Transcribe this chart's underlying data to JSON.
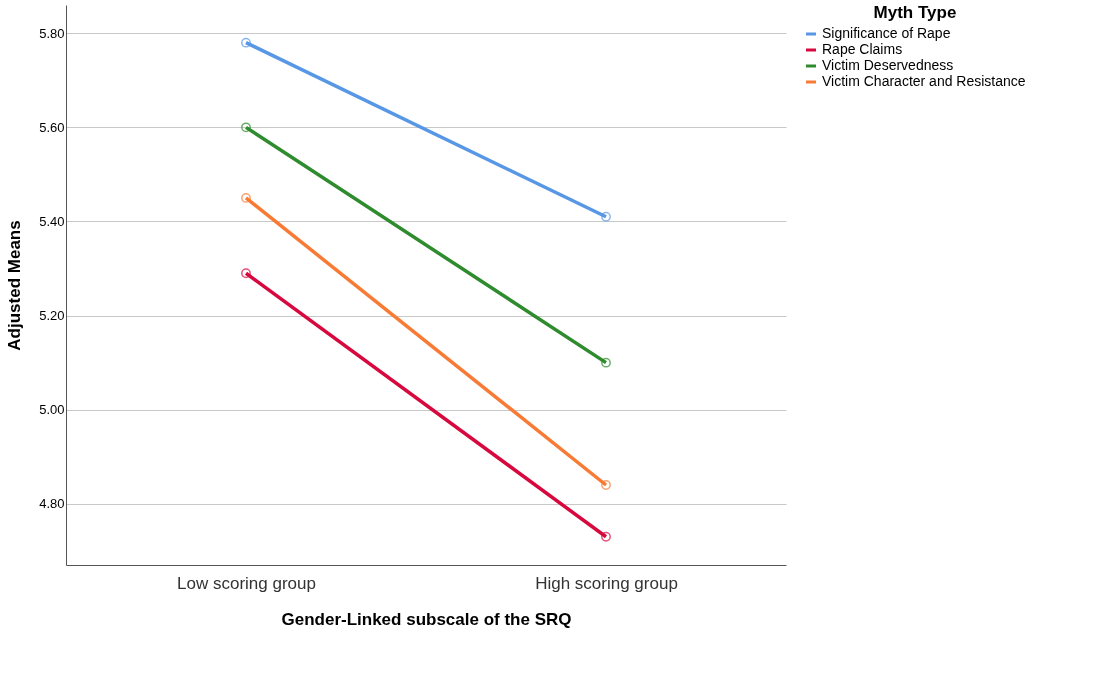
{
  "chart_data": {
    "type": "line",
    "xlabel": "Gender-Linked subscale of the SRQ",
    "ylabel": "Adjusted Means",
    "legend_title": "Myth Type",
    "categories": [
      "Low scoring group",
      "High scoring group"
    ],
    "series": [
      {
        "name": "Significance of Rape",
        "color": "#5897e6",
        "values": [
          5.78,
          5.41
        ]
      },
      {
        "name": "Rape Claims",
        "color": "#d7083e",
        "values": [
          5.29,
          4.73
        ]
      },
      {
        "name": "Victim Deservedness",
        "color": "#2e8b2e",
        "values": [
          5.6,
          5.1
        ]
      },
      {
        "name": "Victim Character and Resistance",
        "color": "#f77b34",
        "values": [
          5.45,
          4.84
        ]
      }
    ],
    "ylim": [
      4.67,
      5.86
    ],
    "yticks": [
      {
        "value": 4.8,
        "label": "4.80"
      },
      {
        "value": 5.0,
        "label": "5.00"
      },
      {
        "value": 5.2,
        "label": "5.20"
      },
      {
        "value": 5.4,
        "label": "5.40"
      },
      {
        "value": 5.6,
        "label": "5.60"
      },
      {
        "value": 5.8,
        "label": "5.80"
      }
    ],
    "grid": "y",
    "legend": "top right",
    "marker": "circle",
    "line_style": "solid"
  }
}
